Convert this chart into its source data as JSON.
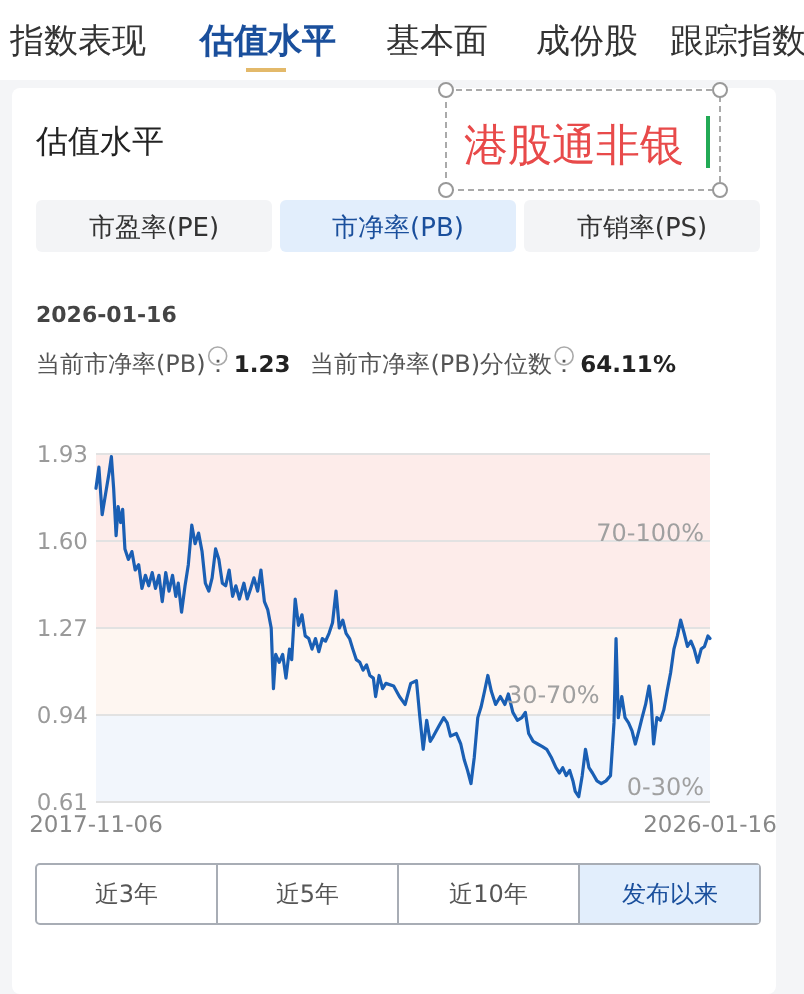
{
  "chart_data": {
    "type": "line",
    "title": "估值水平",
    "subtitle": "港股通非银",
    "annotations": [
      "指数表现",
      "估值水平",
      "基本面",
      "成份股",
      "跟踪指数",
      "市盈率(PE)",
      "市净率(PB)",
      "市销率(PS)",
      "2026-01-16",
      "当前市净率(PB)：",
      "1.23",
      "当前市净率(PB)分位数：",
      "64.11%",
      "近3年",
      "近5年",
      "近10年",
      "发布以来"
    ],
    "x": [
      "2017-11-06",
      "2017-11-20",
      "2017-12-06",
      "2017-12-23",
      "2018-01-09",
      "2018-01-20",
      "2018-01-31",
      "2018-02-12",
      "2018-02-22",
      "2018-03-06",
      "2018-03-16",
      "2018-03-27",
      "2018-04-13",
      "2018-04-30",
      "2018-05-16",
      "2018-06-02",
      "2018-06-18",
      "2018-07-05",
      "2018-07-21",
      "2018-08-07",
      "2018-08-23",
      "2018-09-09",
      "2018-09-25",
      "2018-10-12",
      "2018-10-28",
      "2018-11-14",
      "2018-11-30",
      "2018-12-12",
      "2018-12-28",
      "2019-01-14",
      "2019-01-30",
      "2019-02-16",
      "2019-03-04",
      "2019-03-21",
      "2019-04-07",
      "2019-04-23",
      "2019-05-10",
      "2019-05-26",
      "2019-06-12",
      "2019-06-28",
      "2019-07-15",
      "2019-07-31",
      "2019-08-17",
      "2019-09-03",
      "2019-09-19",
      "2019-10-06",
      "2019-10-28",
      "2019-11-13",
      "2019-11-30",
      "2019-12-16",
      "2020-01-03",
      "2020-01-19",
      "2020-02-05",
      "2020-02-21",
      "2020-03-09",
      "2020-03-20",
      "2020-03-31",
      "2020-04-17",
      "2020-05-04",
      "2020-05-20",
      "2020-06-06",
      "2020-06-17",
      "2020-07-04",
      "2020-07-20",
      "2020-08-06",
      "2020-08-22",
      "2020-09-08",
      "2020-09-24",
      "2020-10-11",
      "2020-10-27",
      "2020-11-13",
      "2020-11-29",
      "2020-12-16",
      "2021-01-02",
      "2021-01-19",
      "2021-02-04",
      "2021-02-21",
      "2021-03-09",
      "2021-03-26",
      "2021-04-11",
      "2021-04-28",
      "2021-05-15",
      "2021-05-31",
      "2021-06-17",
      "2021-07-03",
      "2021-07-20",
      "2021-07-31",
      "2021-08-17",
      "2021-09-03",
      "2021-09-19",
      "2021-10-27",
      "2021-11-24",
      "2021-12-22",
      "2022-01-18",
      "2022-02-15",
      "2022-03-04",
      "2022-03-20",
      "2022-04-06",
      "2022-04-23",
      "2022-05-09",
      "2022-06-06",
      "2022-06-28",
      "2022-07-15",
      "2022-07-31",
      "2022-08-28",
      "2022-09-19",
      "2022-10-06",
      "2022-10-22",
      "2022-11-08",
      "2022-11-24",
      "2022-12-11",
      "2022-12-27",
      "2023-01-13",
      "2023-01-29",
      "2023-02-15",
      "2023-03-08",
      "2023-03-31",
      "2023-04-22",
      "2023-05-09",
      "2023-05-31",
      "2023-06-22",
      "2023-07-14",
      "2023-07-31",
      "2023-08-16",
      "2023-09-07",
      "2023-09-29",
      "2023-10-22",
      "2023-11-12",
      "2023-12-04",
      "2023-12-27",
      "2024-01-13",
      "2024-01-29",
      "2024-02-15",
      "2024-03-03",
      "2024-03-19",
      "2024-03-30",
      "2024-04-16",
      "2024-05-03",
      "2024-05-19",
      "2024-06-05",
      "2024-06-22",
      "2024-07-14",
      "2024-08-04",
      "2024-08-27",
      "2024-09-18",
      "2024-10-05",
      "2024-10-15",
      "2024-10-26",
      "2024-11-12",
      "2024-11-28",
      "2024-12-15",
      "2025-01-01",
      "2025-01-17",
      "2025-02-03",
      "2025-02-19",
      "2025-03-08",
      "2025-03-25",
      "2025-04-05",
      "2025-04-16",
      "2025-05-02",
      "2025-05-19",
      "2025-06-05",
      "2025-06-21",
      "2025-07-08",
      "2025-07-24",
      "2025-08-10",
      "2025-08-26",
      "2025-09-12",
      "2025-09-28",
      "2025-10-15",
      "2025-10-31",
      "2025-11-17",
      "2025-12-04",
      "2025-12-20",
      "2026-01-06",
      "2026-01-16"
    ],
    "values": [
      1.8,
      1.88,
      1.7,
      1.78,
      1.86,
      1.92,
      1.8,
      1.62,
      1.73,
      1.67,
      1.72,
      1.57,
      1.53,
      1.56,
      1.49,
      1.51,
      1.42,
      1.47,
      1.43,
      1.48,
      1.42,
      1.47,
      1.37,
      1.48,
      1.41,
      1.47,
      1.39,
      1.44,
      1.33,
      1.43,
      1.51,
      1.66,
      1.59,
      1.63,
      1.56,
      1.44,
      1.41,
      1.46,
      1.57,
      1.53,
      1.44,
      1.43,
      1.49,
      1.39,
      1.43,
      1.38,
      1.44,
      1.38,
      1.42,
      1.46,
      1.41,
      1.49,
      1.37,
      1.34,
      1.27,
      1.04,
      1.17,
      1.14,
      1.17,
      1.08,
      1.19,
      1.15,
      1.38,
      1.28,
      1.32,
      1.24,
      1.23,
      1.19,
      1.23,
      1.18,
      1.23,
      1.22,
      1.25,
      1.29,
      1.41,
      1.27,
      1.3,
      1.25,
      1.23,
      1.19,
      1.15,
      1.14,
      1.11,
      1.13,
      1.09,
      1.08,
      1.01,
      1.09,
      1.04,
      1.06,
      1.05,
      1.01,
      0.98,
      1.06,
      1.07,
      0.93,
      0.81,
      0.92,
      0.84,
      0.86,
      0.9,
      0.93,
      0.91,
      0.86,
      0.87,
      0.83,
      0.77,
      0.73,
      0.68,
      0.78,
      0.93,
      0.97,
      1.03,
      1.09,
      1.03,
      0.98,
      1.01,
      0.98,
      1.02,
      0.95,
      0.92,
      0.93,
      0.95,
      0.87,
      0.84,
      0.83,
      0.82,
      0.81,
      0.78,
      0.74,
      0.72,
      0.74,
      0.71,
      0.73,
      0.69,
      0.65,
      0.63,
      0.71,
      0.81,
      0.74,
      0.72,
      0.69,
      0.68,
      0.69,
      0.71,
      0.91,
      1.23,
      0.93,
      1.01,
      0.93,
      0.91,
      0.88,
      0.83,
      0.88,
      0.93,
      0.98,
      1.05,
      0.98,
      0.83,
      0.93,
      0.92,
      0.96,
      1.03,
      1.1,
      1.19,
      1.24,
      1.3,
      1.25,
      1.2,
      1.22,
      1.19,
      1.14,
      1.19,
      1.2,
      1.24,
      1.23
    ],
    "color": "#1a5fb4",
    "xlim": [
      "2017-11-06",
      "2026-01-16"
    ],
    "xticks": [
      "2017-11-06",
      "2026-01-16"
    ],
    "ylim": [
      0.61,
      1.93
    ],
    "yticks": [
      0.61,
      0.94,
      1.27,
      {
        "value": 1.6,
        "label": "1.60"
      },
      1.93
    ],
    "grid": "y",
    "bands": [
      {
        "axis": "y",
        "from": 1.27,
        "to": 1.93,
        "label": "70-100%",
        "color": "#fdecea"
      },
      {
        "axis": "y",
        "from": 0.94,
        "to": 1.27,
        "label": "30-70%",
        "color": "#fef6f1"
      },
      {
        "axis": "y",
        "from": 0.61,
        "to": 0.94,
        "label": "0-30%",
        "color": "#f2f6fc"
      }
    ]
  }
}
